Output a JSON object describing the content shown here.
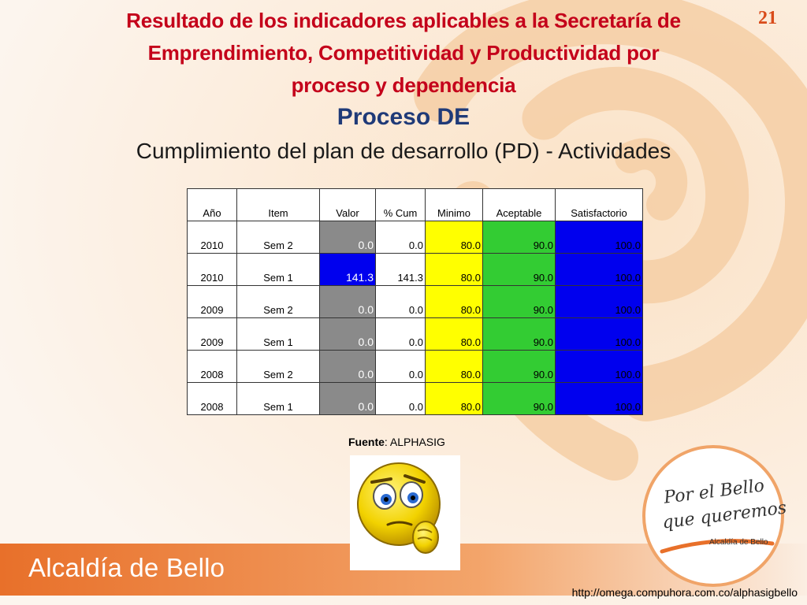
{
  "header": {
    "title_lines": [
      "Resultado de los indicadores aplicables a la Secretaría de",
      "Emprendimiento, Competitividad y Productividad  por",
      "proceso y dependencia"
    ],
    "page_number": "21",
    "proceso": "Proceso DE",
    "subtitle": "Cumplimiento del plan de desarrollo (PD) - Actividades"
  },
  "table": {
    "headers": [
      "Año",
      "Item",
      "Valor",
      "% Cum",
      "Minimo",
      "Aceptable",
      "Satisfactorio"
    ],
    "rows": [
      {
        "anio": "2010",
        "item": "Sem 2",
        "valor": "0.0",
        "cum": "0.0",
        "minimo": "80.0",
        "aceptable": "90.0",
        "satisfactorio": "100.0"
      },
      {
        "anio": "2010",
        "item": "Sem 1",
        "valor": "141.3",
        "cum": "141.3",
        "minimo": "80.0",
        "aceptable": "90.0",
        "satisfactorio": "100.0"
      },
      {
        "anio": "2009",
        "item": "Sem 2",
        "valor": "0.0",
        "cum": "0.0",
        "minimo": "80.0",
        "aceptable": "90.0",
        "satisfactorio": "100.0"
      },
      {
        "anio": "2009",
        "item": "Sem 1",
        "valor": "0.0",
        "cum": "0.0",
        "minimo": "80.0",
        "aceptable": "90.0",
        "satisfactorio": "100.0"
      },
      {
        "anio": "2008",
        "item": "Sem 2",
        "valor": "0.0",
        "cum": "0.0",
        "minimo": "80.0",
        "aceptable": "90.0",
        "satisfactorio": "100.0"
      },
      {
        "anio": "2008",
        "item": "Sem 1",
        "valor": "0.0",
        "cum": "0.0",
        "minimo": "80.0",
        "aceptable": "90.0",
        "satisfactorio": "100.0"
      }
    ]
  },
  "fuente": {
    "label": "Fuente",
    "value": ": ALPHASIG"
  },
  "footer": {
    "brand": "Alcaldía de Bello",
    "url": "http://omega.compuhora.com.co/alphasigbello"
  },
  "logo": {
    "line1": "Por el Bello",
    "line2": "que queremos",
    "line3": "Alcaldía de Bello"
  },
  "colors": {
    "title": "#c4001a",
    "proceso": "#1f3a78",
    "valor_gray": "#8a8a8a",
    "valor_blue": "#0000ee",
    "minimo": "#ffff00",
    "aceptable": "#33cc33",
    "satisfactorio": "#0000ee",
    "footer_band": "#e8702a"
  },
  "icons": {
    "smiley": "thinking-face-icon"
  }
}
